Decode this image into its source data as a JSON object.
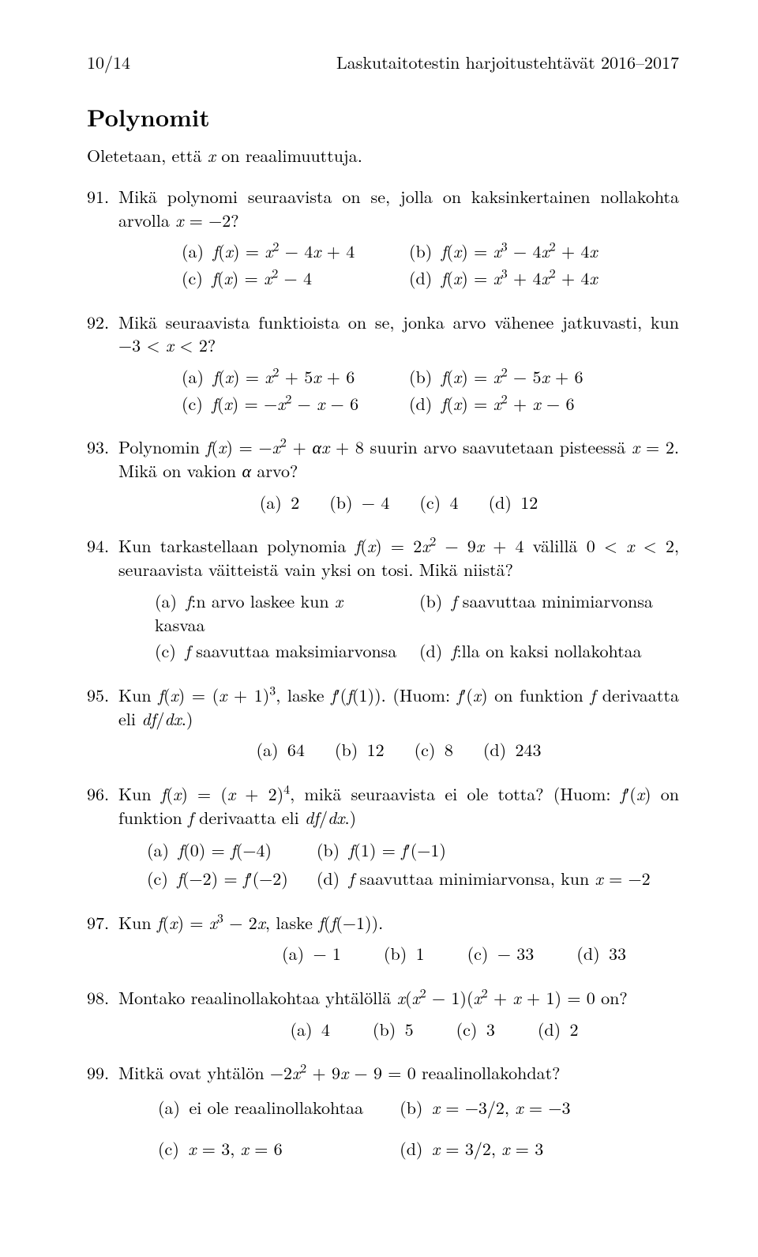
{
  "page": {
    "number_label": "10/14",
    "running_title": "Laskutaitotestin harjoitustehtävät 2016–2017"
  },
  "section_title": "Polynomit",
  "intro_html": "Oletetaan, että <span class='math'>x</span> on reaalimuuttuja.",
  "problems": [
    {
      "num": 91,
      "text_html": "Mikä polynomi seuraavista on se, jolla on kaksinkertainen nollakohta arvolla <span class='math'>x</span> = −2?",
      "choice_layout": "grid-narrow",
      "choices": [
        {
          "label": "(a)",
          "html": "<span class='math'>f</span>(<span class='math'>x</span>) = <span class='math'>x</span><sup>2</sup> − 4<span class='math'>x</span> + 4"
        },
        {
          "label": "(b)",
          "html": "<span class='math'>f</span>(<span class='math'>x</span>) = <span class='math'>x</span><sup>3</sup> − 4<span class='math'>x</span><sup>2</sup> + 4<span class='math'>x</span>"
        },
        {
          "label": "(c)",
          "html": "<span class='math'>f</span>(<span class='math'>x</span>) = <span class='math'>x</span><sup>2</sup> − 4"
        },
        {
          "label": "(d)",
          "html": "<span class='math'>f</span>(<span class='math'>x</span>) = <span class='math'>x</span><sup>3</sup> + 4<span class='math'>x</span><sup>2</sup> + 4<span class='math'>x</span>"
        }
      ]
    },
    {
      "num": 92,
      "text_html": "Mikä seuraavista funktioista on se, jonka arvo vähenee jatkuvasti, kun −3 &lt; <span class='math'>x</span> &lt; 2?",
      "choice_layout": "grid-narrow",
      "choices": [
        {
          "label": "(a)",
          "html": "<span class='math'>f</span>(<span class='math'>x</span>) = <span class='math'>x</span><sup>2</sup> + 5<span class='math'>x</span> + 6"
        },
        {
          "label": "(b)",
          "html": "<span class='math'>f</span>(<span class='math'>x</span>) = <span class='math'>x</span><sup>2</sup> − 5<span class='math'>x</span> + 6"
        },
        {
          "label": "(c)",
          "html": "<span class='math'>f</span>(<span class='math'>x</span>) = −<span class='math'>x</span><sup>2</sup> − <span class='math'>x</span> − 6"
        },
        {
          "label": "(d)",
          "html": "<span class='math'>f</span>(<span class='math'>x</span>) = <span class='math'>x</span><sup>2</sup> + <span class='math'>x</span> − 6"
        }
      ]
    },
    {
      "num": 93,
      "text_html": "Polynomin <span class='math'>f</span>(<span class='math'>x</span>) = −<span class='math'>x</span><sup>2</sup> + <span class='math'>αx</span> + 8 suurin arvo saavutetaan pisteessä <span class='math'>x</span> = 2. Mikä on vakion <span class='math'>α</span> arvo?",
      "choice_layout": "row",
      "choices": [
        {
          "label": "(a)",
          "html": "2"
        },
        {
          "label": "(b)",
          "html": "− 4"
        },
        {
          "label": "(c)",
          "html": "4"
        },
        {
          "label": "(d)",
          "html": "12"
        }
      ]
    },
    {
      "num": 94,
      "text_html": "Kun tarkastellaan polynomia <span class='math'>f</span>(<span class='math'>x</span>) = 2<span class='math'>x</span><sup>2</sup> − 9<span class='math'>x</span> + 4 välillä 0 &lt; <span class='math'>x</span> &lt; 2, seuraavista väitteistä vain yksi on tosi. Mikä niistä?",
      "choice_layout": "grid",
      "choices": [
        {
          "label": "(a)",
          "html": "<span class='math'>f</span>:n arvo laskee kun <span class='math'>x</span> kasvaa"
        },
        {
          "label": "(b)",
          "html": "<span class='math'>f</span> saavuttaa minimiarvonsa"
        },
        {
          "label": "(c)",
          "html": "<span class='math'>f</span> saavuttaa maksimiarvonsa"
        },
        {
          "label": "(d)",
          "html": "<span class='math'>f</span>:lla on kaksi nollakohtaa"
        }
      ]
    },
    {
      "num": 95,
      "text_html": "Kun <span class='math'>f</span>(<span class='math'>x</span>) = (<span class='math'>x</span> + 1)<sup>3</sup>, laske <span class='math'>f</span>&prime;(<span class='math'>f</span>(1)). (Huom: <span class='math'>f</span>&prime;(<span class='math'>x</span>) on funktion <span class='math'>f</span> derivaatta eli <span class='math'>df</span>/<span class='math'>dx</span>.)",
      "choice_layout": "row",
      "choices": [
        {
          "label": "(a)",
          "html": "64"
        },
        {
          "label": "(b)",
          "html": "12"
        },
        {
          "label": "(c)",
          "html": "8"
        },
        {
          "label": "(d)",
          "html": "243"
        }
      ]
    },
    {
      "num": 96,
      "text_html": "Kun <span class='math'>f</span>(<span class='math'>x</span>) = (<span class='math'>x</span> + 2)<sup>4</sup>, mikä seuraavista ei ole totta? (Huom: <span class='math'>f</span>&prime;(<span class='math'>x</span>) on funktion <span class='math'>f</span> derivaatta eli <span class='math'>df</span>/<span class='math'>dx</span>.)",
      "choice_layout": "q96",
      "choices": [
        {
          "label": "(a)",
          "html": "<span class='math'>f</span>(0) = <span class='math'>f</span>(−4)"
        },
        {
          "label": "(b)",
          "html": "<span class='math'>f</span>(1) = <span class='math'>f</span>&prime;(−1)"
        },
        {
          "label": "(c)",
          "html": "<span class='math'>f</span>(−2) = <span class='math'>f</span>&prime;(−2)"
        },
        {
          "label": "(d)",
          "html": "<span class='math'>f</span> saavuttaa minimiarvonsa, kun <span class='math'>x</span> = −2"
        }
      ]
    },
    {
      "num": 97,
      "text_html": "Kun <span class='math'>f</span>(<span class='math'>x</span>) = <span class='math'>x</span><sup>3</sup> − 2<span class='math'>x</span>, laske <span class='math'>f</span>(<span class='math'>f</span>(−1)).",
      "choice_layout": "row-right",
      "choices": [
        {
          "label": "(a)",
          "html": "− 1"
        },
        {
          "label": "(b)",
          "html": "1"
        },
        {
          "label": "(c)",
          "html": "− 33"
        },
        {
          "label": "(d)",
          "html": "33"
        }
      ]
    },
    {
      "num": 98,
      "text_html": "Montako reaalinollakohtaa yhtälöllä <span class='math'>x</span>(<span class='math'>x</span><sup>2</sup> − 1)(<span class='math'>x</span><sup>2</sup> + <span class='math'>x</span> + 1) = 0 on?",
      "choice_layout": "row-right2",
      "choices": [
        {
          "label": "(a)",
          "html": "4"
        },
        {
          "label": "(b)",
          "html": "5"
        },
        {
          "label": "(c)",
          "html": "3"
        },
        {
          "label": "(d)",
          "html": "2"
        }
      ]
    },
    {
      "num": 99,
      "text_html": "Mitkä ovat yhtälön −2<span class='math'>x</span><sup>2</sup> + 9<span class='math'>x</span> − 9 = 0 reaalinollakohdat?",
      "choice_layout": "q99",
      "choices": [
        {
          "label": "(a)",
          "html": "ei ole reaalinollakohtaa"
        },
        {
          "label": "(b)",
          "html": "<span class='math'>x</span> = −3/2, <span class='math'>x</span> = −3"
        },
        {
          "label": "(c)",
          "html": "<span class='math'>x</span> = 3, <span class='math'>x</span> = 6"
        },
        {
          "label": "(d)",
          "html": "<span class='math'>x</span> = 3/2, <span class='math'>x</span> = 3"
        }
      ]
    }
  ]
}
